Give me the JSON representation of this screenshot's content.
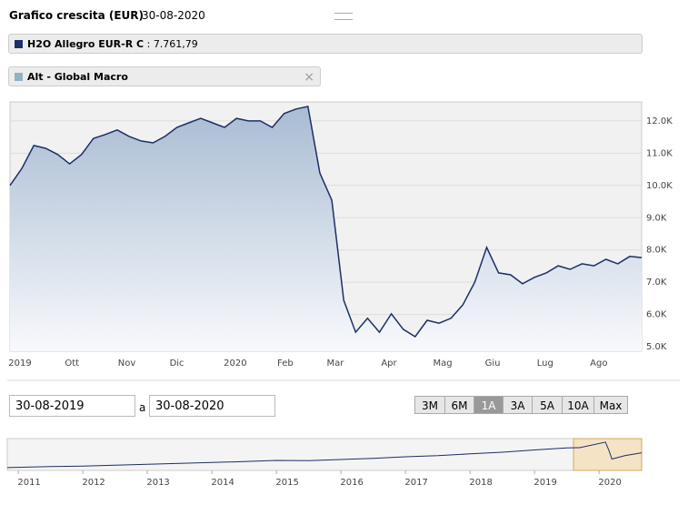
{
  "header": {
    "title": "Grafico crescita (EUR)",
    "date": "30-08-2020"
  },
  "legend": [
    {
      "name": "H2O Allegro EUR-R C",
      "color": "#1c2f66",
      "value_label": "7.761,79"
    },
    {
      "name": "Alt - Global Macro",
      "color": "#8fb3c0"
    }
  ],
  "chart_data": {
    "type": "line",
    "series": [
      {
        "name": "H2O Allegro EUR-R C",
        "color": "#1c2f66",
        "values": [
          10000,
          10530,
          11240,
          11150,
          10960,
          10670,
          10960,
          11460,
          11580,
          11720,
          11520,
          11380,
          11320,
          11520,
          11800,
          11940,
          12080,
          11940,
          11800,
          12080,
          12000,
          12000,
          11800,
          12230,
          12370,
          12450,
          10390,
          9540,
          6440,
          5450,
          5880,
          5450,
          6020,
          5540,
          5310,
          5820,
          5730,
          5880,
          6300,
          7000,
          8080,
          7290,
          7230,
          6950,
          7150,
          7290,
          7510,
          7400,
          7570,
          7510,
          7710,
          7570,
          7800,
          7761.79
        ]
      }
    ],
    "xlim": [
      0,
      53
    ],
    "xticks": [
      {
        "value": 0.84,
        "label": "2019"
      },
      {
        "value": 5.2,
        "label": "Ott"
      },
      {
        "value": 9.8,
        "label": "Nov"
      },
      {
        "value": 14,
        "label": "Dic"
      },
      {
        "value": 18.9,
        "label": "2020"
      },
      {
        "value": 23.1,
        "label": "Feb"
      },
      {
        "value": 27.3,
        "label": "Mar"
      },
      {
        "value": 31.8,
        "label": "Apr"
      },
      {
        "value": 36.3,
        "label": "Mag"
      },
      {
        "value": 40.5,
        "label": "Giu"
      },
      {
        "value": 44.9,
        "label": "Lug"
      },
      {
        "value": 49.4,
        "label": "Ago"
      }
    ],
    "ylim": [
      4860,
      12590
    ],
    "yticks": [
      {
        "value": 5000,
        "label": "5.0K"
      },
      {
        "value": 6000,
        "label": "6.0K"
      },
      {
        "value": 7000,
        "label": "7.0K"
      },
      {
        "value": 8000,
        "label": "8.0K"
      },
      {
        "value": 9000,
        "label": "9.0K"
      },
      {
        "value": 10000,
        "label": "10.0K"
      },
      {
        "value": 11000,
        "label": "11.0K"
      },
      {
        "value": 12000,
        "label": "12.0K"
      }
    ],
    "grid": true
  },
  "controls": {
    "from": "30-08-2019",
    "separator": "a",
    "to": "30-08-2020",
    "ranges": [
      "3M",
      "6M",
      "1A",
      "3A",
      "5A",
      "10A",
      "Max"
    ],
    "active": 2
  },
  "navigator": {
    "type": "line",
    "color": "#1c2f66",
    "x": [
      2010.83,
      2011.5,
      2012,
      2012.5,
      2013,
      2013.5,
      2014,
      2014.5,
      2015,
      2015.5,
      2016,
      2016.5,
      2017,
      2017.5,
      2018,
      2018.5,
      2019,
      2019.5,
      2019.7,
      2020.1,
      2020.15,
      2020.2,
      2020.4,
      2020.66
    ],
    "values": [
      1240,
      1700,
      1900,
      2300,
      2700,
      3100,
      3500,
      3900,
      4400,
      4300,
      4800,
      5300,
      6000,
      6500,
      7300,
      8000,
      9000,
      9900,
      10000,
      12450,
      9000,
      5000,
      6500,
      7760
    ],
    "xlim": [
      2010.83,
      2020.66
    ],
    "ylim": [
      0,
      14000
    ],
    "xticks": [
      2011,
      2012,
      2013,
      2014,
      2015,
      2016,
      2017,
      2018,
      2019,
      2020
    ]
  }
}
